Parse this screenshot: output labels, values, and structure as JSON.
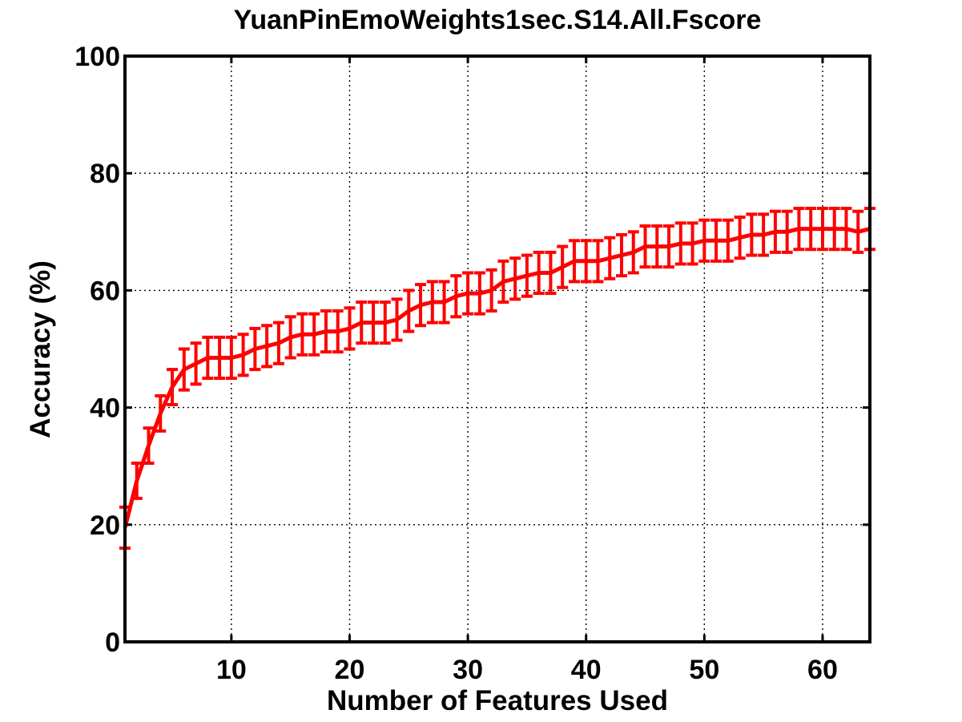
{
  "chart_data": {
    "type": "line",
    "title": "YuanPinEmoWeights1sec.S14.All.Fscore",
    "xlabel": "Number of Features Used",
    "ylabel": "Accuracy (%)",
    "xlim": [
      1,
      64
    ],
    "ylim": [
      0,
      100
    ],
    "xticks": [
      10,
      20,
      30,
      40,
      50,
      60
    ],
    "yticks": [
      0,
      20,
      40,
      60,
      80,
      100
    ],
    "grid": true,
    "error_bars": true,
    "color": "#ff0000",
    "series": [
      {
        "x": [
          1,
          2,
          3,
          4,
          5,
          6,
          7,
          8,
          9,
          10,
          11,
          12,
          13,
          14,
          15,
          16,
          17,
          18,
          19,
          20,
          21,
          22,
          23,
          24,
          25,
          26,
          27,
          28,
          29,
          30,
          31,
          32,
          33,
          34,
          35,
          36,
          37,
          38,
          39,
          40,
          41,
          42,
          43,
          44,
          45,
          46,
          47,
          48,
          49,
          50,
          51,
          52,
          53,
          54,
          55,
          56,
          57,
          58,
          59,
          60,
          61,
          62,
          63,
          64
        ],
        "y": [
          19.5,
          27.5,
          33.5,
          39.0,
          43.5,
          46.5,
          47.5,
          48.5,
          48.5,
          48.5,
          49.0,
          50.0,
          50.5,
          51.0,
          52.0,
          52.5,
          52.5,
          53.0,
          53.0,
          53.5,
          54.5,
          54.5,
          54.5,
          55.0,
          56.5,
          57.5,
          58.0,
          58.0,
          59.0,
          59.5,
          59.5,
          60.0,
          61.5,
          62.0,
          62.5,
          63.0,
          63.0,
          64.0,
          65.0,
          65.0,
          65.0,
          65.5,
          66.0,
          66.5,
          67.5,
          67.5,
          67.5,
          68.0,
          68.0,
          68.5,
          68.5,
          68.5,
          69.0,
          69.5,
          69.5,
          70.0,
          70.0,
          70.5,
          70.5,
          70.5,
          70.5,
          70.5,
          70.0,
          70.5
        ],
        "error": [
          3.5,
          3.0,
          3.0,
          3.0,
          3.0,
          3.5,
          3.5,
          3.5,
          3.5,
          3.5,
          3.5,
          3.5,
          3.5,
          3.5,
          3.5,
          3.5,
          3.5,
          3.5,
          3.5,
          3.5,
          3.5,
          3.5,
          3.5,
          3.5,
          3.5,
          3.5,
          3.5,
          3.5,
          3.5,
          3.5,
          3.5,
          3.5,
          3.5,
          3.5,
          3.5,
          3.5,
          3.5,
          3.5,
          3.5,
          3.5,
          3.5,
          3.5,
          3.5,
          3.5,
          3.5,
          3.5,
          3.5,
          3.5,
          3.5,
          3.5,
          3.5,
          3.5,
          3.5,
          3.5,
          3.5,
          3.5,
          3.5,
          3.5,
          3.5,
          3.5,
          3.5,
          3.5,
          3.5,
          3.5
        ]
      }
    ]
  }
}
